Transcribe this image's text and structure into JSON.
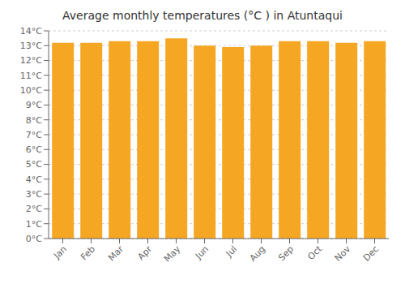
{
  "chart_data": {
    "type": "bar",
    "title": "Average monthly temperatures (°C ) in Atuntaqui",
    "categories": [
      "Jan",
      "Feb",
      "Mar",
      "Apr",
      "May",
      "Jun",
      "Jul",
      "Aug",
      "Sep",
      "Oct",
      "Nov",
      "Dec"
    ],
    "values": [
      13.2,
      13.2,
      13.3,
      13.3,
      13.5,
      13.0,
      12.9,
      13.0,
      13.3,
      13.3,
      13.2,
      13.3
    ],
    "color": "#F5A623",
    "ylim": [
      0,
      14
    ],
    "yticks": [
      {
        "value": 0,
        "label": "0°C"
      },
      {
        "value": 1,
        "label": "1°C"
      },
      {
        "value": 2,
        "label": "2°C"
      },
      {
        "value": 3,
        "label": "3°C"
      },
      {
        "value": 4,
        "label": "4°C"
      },
      {
        "value": 5,
        "label": "5°C"
      },
      {
        "value": 6,
        "label": "6°C"
      },
      {
        "value": 7,
        "label": "7°C"
      },
      {
        "value": 8,
        "label": "8°C"
      },
      {
        "value": 9,
        "label": "9°C"
      },
      {
        "value": 10,
        "label": "10°C"
      },
      {
        "value": 11,
        "label": "11°C"
      },
      {
        "value": 12,
        "label": "12°C"
      },
      {
        "value": 13,
        "label": "13°C"
      },
      {
        "value": 14,
        "label": "14°C"
      }
    ],
    "grid": true
  }
}
